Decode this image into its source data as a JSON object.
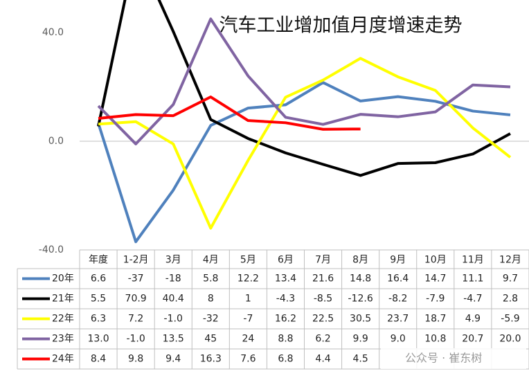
{
  "chart_data": {
    "type": "line",
    "title": "汽车工业增加值月度增速走势",
    "categories": [
      "年度",
      "1-2月",
      "3月",
      "4月",
      "5月",
      "6月",
      "7月",
      "8月",
      "9月",
      "10月",
      "11月",
      "12月"
    ],
    "ylim": [
      -40,
      40
    ],
    "yticks": [
      {
        "value": 40,
        "label": "40.0"
      },
      {
        "value": 0,
        "label": "0.0"
      },
      {
        "value": -40,
        "label": "-40.0"
      }
    ],
    "series": [
      {
        "name": "20年",
        "color": "#4f81bd",
        "values": [
          6.6,
          -37,
          -18,
          5.8,
          12.2,
          13.4,
          21.6,
          14.8,
          16.4,
          14.7,
          11.1,
          9.7
        ],
        "value_labels": [
          "6.6",
          "-37",
          "-18",
          "5.8",
          "12.2",
          "13.4",
          "21.6",
          "14.8",
          "16.4",
          "14.7",
          "11.1",
          "9.7"
        ]
      },
      {
        "name": "21年",
        "color": "#000000",
        "values": [
          5.5,
          70.9,
          40.4,
          8,
          1,
          -4.3,
          -8.5,
          -12.6,
          -8.2,
          -7.9,
          -4.7,
          2.8
        ],
        "value_labels": [
          "5.5",
          "70.9",
          "40.4",
          "8",
          "1",
          "-4.3",
          "-8.5",
          "-12.6",
          "-8.2",
          "-7.9",
          "-4.7",
          "2.8"
        ]
      },
      {
        "name": "22年",
        "color": "#ffff00",
        "values": [
          6.3,
          7.2,
          -1.0,
          -32,
          -7,
          16.2,
          22.5,
          30.5,
          23.7,
          18.7,
          4.9,
          -5.9
        ],
        "value_labels": [
          "6.3",
          "7.2",
          "-1.0",
          "-32",
          "-7",
          "16.2",
          "22.5",
          "30.5",
          "23.7",
          "18.7",
          "4.9",
          "-5.9"
        ]
      },
      {
        "name": "23年",
        "color": "#8064a2",
        "values": [
          13.0,
          -1.0,
          13.5,
          45,
          24,
          8.8,
          6.2,
          9.9,
          9.0,
          10.8,
          20.7,
          20.0
        ],
        "value_labels": [
          "13.0",
          "-1.0",
          "13.5",
          "45",
          "24",
          "8.8",
          "6.2",
          "9.9",
          "9.0",
          "10.8",
          "20.7",
          "20.0"
        ]
      },
      {
        "name": "24年",
        "color": "#ff0000",
        "values": [
          8.4,
          9.8,
          9.4,
          16.3,
          7.6,
          6.8,
          4.4,
          4.5,
          null,
          null,
          null,
          null
        ],
        "value_labels": [
          "8.4",
          "9.8",
          "9.4",
          "16.3",
          "7.6",
          "6.8",
          "4.4",
          "4.5",
          null,
          null,
          null,
          null
        ]
      }
    ],
    "watermark": "公众号 · 崔东树"
  }
}
